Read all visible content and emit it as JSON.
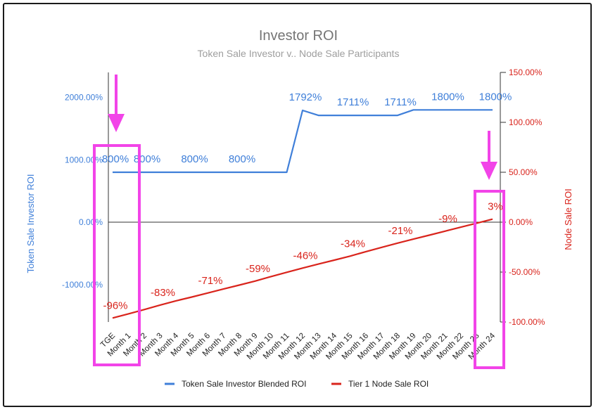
{
  "chart_data": {
    "type": "line",
    "title": "Investor ROI",
    "subtitle": "Token Sale Investor v.. Node Sale Participants",
    "categories": [
      "TGE",
      "Month 1",
      "Month 2",
      "Month 3",
      "Month 4",
      "Month 5",
      "Month 6",
      "Month 7",
      "Month 8",
      "Month 9",
      "Month 10",
      "Month 11",
      "Month 12",
      "Month 13",
      "Month 14",
      "Month 15",
      "Month 16",
      "Month 17",
      "Month 18",
      "Month 19",
      "Month 20",
      "Month 21",
      "Month 22",
      "Month 23",
      "Month 24"
    ],
    "y_left": {
      "label": "Token Sale Investor ROI",
      "range": [
        -1600,
        2400
      ],
      "ticks": [
        -1000,
        0,
        1000,
        2000
      ],
      "tick_labels": [
        "-1000.00%",
        "0.00%",
        "1000.00%",
        "2000.00%"
      ],
      "color": "#3f7fd9"
    },
    "y_right": {
      "label": "Node Sale ROI",
      "range": [
        -100,
        150
      ],
      "ticks": [
        -100,
        -50,
        0,
        50,
        100,
        150
      ],
      "tick_labels": [
        "-100.00%",
        "-50.00%",
        "0.00%",
        "50.00%",
        "100.00%",
        "150.00%"
      ],
      "color": "#d9241c"
    },
    "series": [
      {
        "name": "Token Sale Investor Blended ROI",
        "axis": "left",
        "color": "#3f7fd9",
        "values": [
          800,
          800,
          800,
          800,
          800,
          800,
          800,
          800,
          800,
          800,
          800,
          800,
          1792,
          1711,
          1711,
          1711,
          1711,
          1711,
          1711,
          1800,
          1800,
          1800,
          1800,
          1800,
          1800
        ],
        "data_labels": [
          {
            "index": 0,
            "text": "800%"
          },
          {
            "index": 2,
            "text": "800%"
          },
          {
            "index": 5,
            "text": "800%"
          },
          {
            "index": 8,
            "text": "800%"
          },
          {
            "index": 12,
            "text": "1792%"
          },
          {
            "index": 15,
            "text": "1711%"
          },
          {
            "index": 18,
            "text": "1711%"
          },
          {
            "index": 21,
            "text": "1800%"
          },
          {
            "index": 24,
            "text": "1800%"
          }
        ]
      },
      {
        "name": "Tier 1 Node Sale ROI",
        "axis": "right",
        "color": "#d9241c",
        "values": [
          -96,
          -91.8,
          -87.5,
          -83,
          -78.8,
          -75,
          -71,
          -67,
          -63,
          -59,
          -54.5,
          -50.2,
          -46,
          -42,
          -38,
          -34,
          -29.5,
          -25.2,
          -21,
          -17,
          -13,
          -9,
          -5,
          -1,
          3
        ],
        "data_labels": [
          {
            "index": 0,
            "text": "-96%"
          },
          {
            "index": 3,
            "text": "-83%"
          },
          {
            "index": 6,
            "text": "-71%"
          },
          {
            "index": 9,
            "text": "-59%"
          },
          {
            "index": 12,
            "text": "-46%"
          },
          {
            "index": 15,
            "text": "-34%"
          },
          {
            "index": 18,
            "text": "-21%"
          },
          {
            "index": 21,
            "text": "-9%"
          },
          {
            "index": 24,
            "text": "3%"
          }
        ]
      }
    ],
    "legend": {
      "placement": "bottom"
    },
    "annotations": {
      "highlight_color": "#f244e8"
    }
  }
}
